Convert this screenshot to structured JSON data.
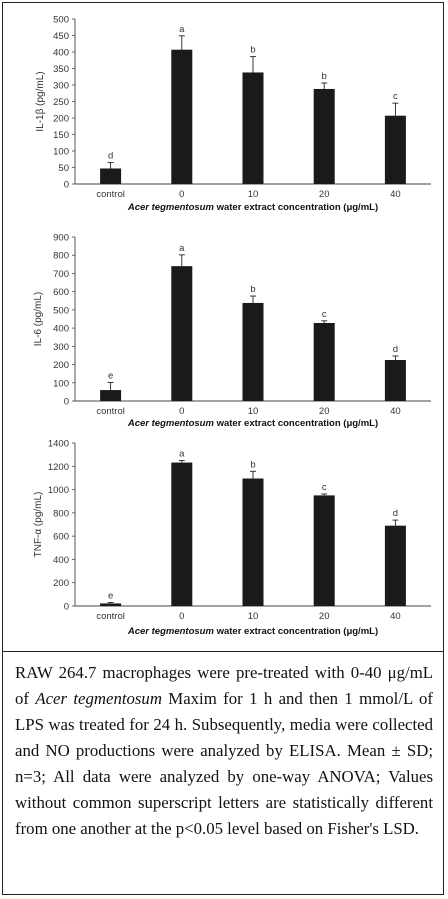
{
  "chart_data": [
    {
      "type": "bar",
      "categories": [
        "control",
        "0",
        "10",
        "20",
        "40"
      ],
      "values": [
        47,
        407,
        338,
        288,
        207
      ],
      "errors": [
        18,
        42,
        48,
        18,
        38
      ],
      "letters": [
        "d",
        "a",
        "b",
        "b",
        "c"
      ],
      "ylabel": "IL-1β (pg/mL)",
      "xlabel_italic": "Acer tegmentosum",
      "xlabel_rest": " water extract concentration (μg/mL)",
      "ylim": [
        0,
        500
      ],
      "yticks": [
        "0",
        "50",
        "100",
        "150",
        "200",
        "250",
        "300",
        "350",
        "400",
        "450",
        "500"
      ],
      "color": "#1a1a1a"
    },
    {
      "type": "bar",
      "categories": [
        "control",
        "0",
        "10",
        "20",
        "40"
      ],
      "values": [
        60,
        740,
        538,
        428,
        225
      ],
      "errors": [
        42,
        62,
        38,
        12,
        22
      ],
      "letters": [
        "e",
        "a",
        "b",
        "c",
        "d"
      ],
      "ylabel": "IL-6 (pg/mL)",
      "xlabel_italic": "Acer tegmentosum",
      "xlabel_rest": " water extract concentration (μg/mL)",
      "ylim": [
        0,
        900
      ],
      "yticks": [
        "0",
        "100",
        "200",
        "300",
        "400",
        "500",
        "600",
        "700",
        "800",
        "900"
      ],
      "color": "#1a1a1a"
    },
    {
      "type": "bar",
      "categories": [
        "control",
        "0",
        "10",
        "20",
        "40"
      ],
      "values": [
        22,
        1232,
        1095,
        950,
        690
      ],
      "errors": [
        8,
        18,
        62,
        12,
        48
      ],
      "letters": [
        "e",
        "a",
        "b",
        "c",
        "d"
      ],
      "ylabel": "TNF-α (pg/mL)",
      "xlabel_italic": "Acer tegmentosum",
      "xlabel_rest": " water extract concentration (μg/mL)",
      "ylim": [
        0,
        1400
      ],
      "yticks": [
        "0",
        "200",
        "400",
        "600",
        "800",
        "1000",
        "1200",
        "1400"
      ],
      "color": "#1a1a1a"
    }
  ],
  "caption": {
    "part1": "RAW 264.7 macrophages were pre-treated with 0-40 μg/mL of ",
    "italic": "Acer tegmentosum",
    "part2": " Maxim for 1 h and then 1 mmol/L of LPS was treated for 24 h. Subsequently, media were collected and NO productions were analyzed by ELISA. Mean ± SD; n=3; All data were analyzed by one-way ANOVA; Values without common superscript letters are statistically different from one another at the p<0.05 level based on Fisher's LSD."
  }
}
